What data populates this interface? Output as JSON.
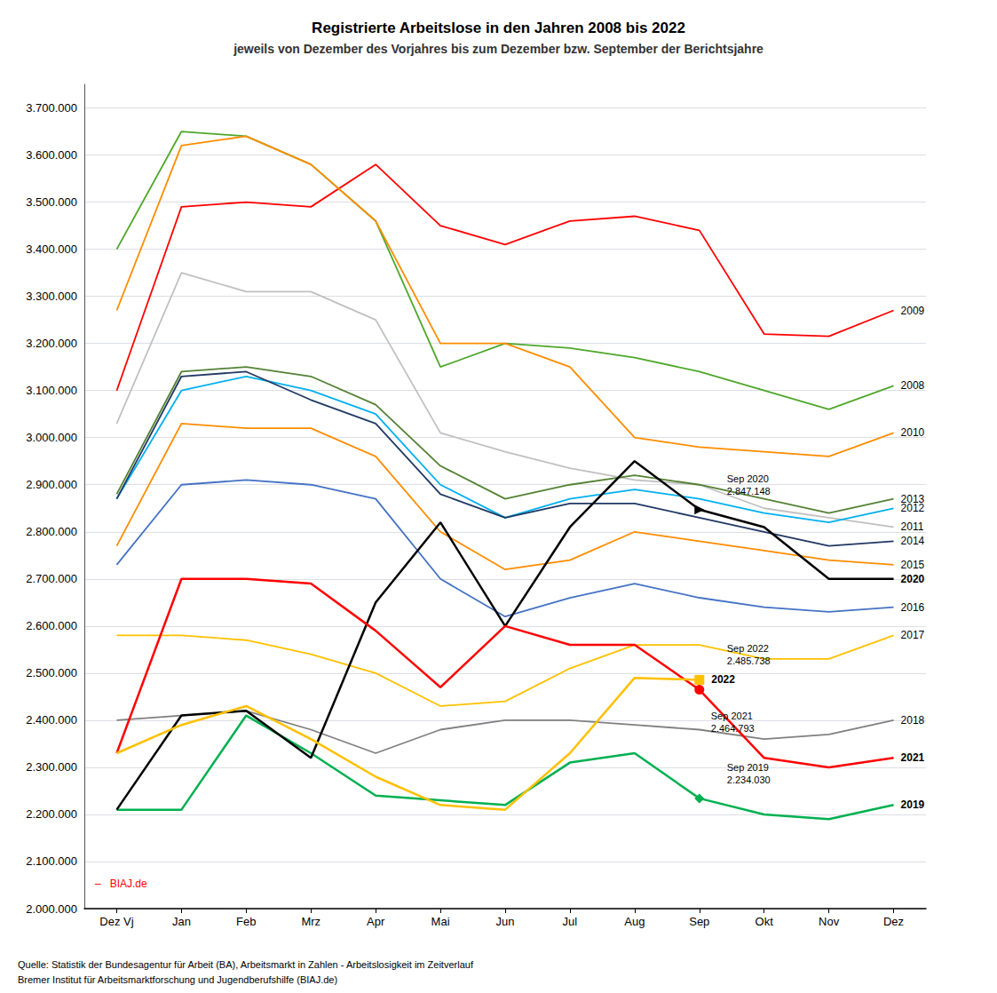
{
  "chart_data": {
    "type": "line",
    "title": "Registrierte Arbeitslose in den Jahren 2008 bis 2022",
    "subtitle": "jeweils von Dezember des Vorjahres bis zum Dezember bzw. September der Berichtsjahre",
    "source": [
      "Quelle: Statistik der Bundesagentur für Arbeit (BA), Arbeitsmarkt in Zahlen - Arbeitslosigkeit im Zeitverlauf",
      "Bremer Institut für Arbeitsmarktforschung und Jugendberufshilfe (BIAJ.de)"
    ],
    "categories": [
      "Dez Vj",
      "Jan",
      "Feb",
      "Mrz",
      "Apr",
      "Mai",
      "Jun",
      "Jul",
      "Aug",
      "Sep",
      "Okt",
      "Nov",
      "Dez"
    ],
    "ylim": [
      2000000,
      3750000
    ],
    "yticks": [
      {
        "value": 2000000,
        "label": "2.000.000"
      },
      {
        "value": 2100000,
        "label": "2.100.000"
      },
      {
        "value": 2200000,
        "label": "2.200.000"
      },
      {
        "value": 2300000,
        "label": "2.300.000"
      },
      {
        "value": 2400000,
        "label": "2.400.000"
      },
      {
        "value": 2500000,
        "label": "2.500.000"
      },
      {
        "value": 2600000,
        "label": "2.600.000"
      },
      {
        "value": 2700000,
        "label": "2.700.000"
      },
      {
        "value": 2800000,
        "label": "2.800.000"
      },
      {
        "value": 2900000,
        "label": "2.900.000"
      },
      {
        "value": 3000000,
        "label": "3.000.000"
      },
      {
        "value": 3100000,
        "label": "3.100.000"
      },
      {
        "value": 3200000,
        "label": "3.200.000"
      },
      {
        "value": 3300000,
        "label": "3.300.000"
      },
      {
        "value": 3400000,
        "label": "3.400.000"
      },
      {
        "value": 3500000,
        "label": "3.500.000"
      },
      {
        "value": 3600000,
        "label": "3.600.000"
      },
      {
        "value": 3700000,
        "label": "3.700.000"
      }
    ],
    "grid": true,
    "series": [
      {
        "name": "2008",
        "color": "#4EA72A",
        "values": [
          3400000,
          3650000,
          3640000,
          3580000,
          3460000,
          3150000,
          3200000,
          3190000,
          3170000,
          3140000,
          3100000,
          3060000,
          3110000
        ]
      },
      {
        "name": "2009",
        "color": "#FF0000",
        "values": [
          3100000,
          3490000,
          3500000,
          3490000,
          3580000,
          3450000,
          3410000,
          3460000,
          3470000,
          3440000,
          3220000,
          3215000,
          3270000
        ]
      },
      {
        "name": "2010",
        "color": "#FF8C00",
        "values": [
          3270000,
          3620000,
          3640000,
          3580000,
          3460000,
          3200000,
          3200000,
          3150000,
          3000000,
          2980000,
          2970000,
          2960000,
          3010000
        ]
      },
      {
        "name": "2011",
        "color": "#C0C0C0",
        "values": [
          3030000,
          3350000,
          3310000,
          3310000,
          3250000,
          3010000,
          2970000,
          2935000,
          2910000,
          2900000,
          2850000,
          2830000,
          2810000
        ]
      },
      {
        "name": "2012",
        "color": "#00B0F0",
        "values": [
          2870000,
          3100000,
          3130000,
          3100000,
          3050000,
          2900000,
          2830000,
          2870000,
          2890000,
          2870000,
          2840000,
          2820000,
          2850000
        ]
      },
      {
        "name": "2013",
        "color": "#548235",
        "values": [
          2880000,
          3140000,
          3150000,
          3130000,
          3070000,
          2940000,
          2870000,
          2900000,
          2920000,
          2900000,
          2870000,
          2840000,
          2870000
        ]
      },
      {
        "name": "2014",
        "color": "#203864",
        "values": [
          2870000,
          3130000,
          3140000,
          3080000,
          3030000,
          2880000,
          2830000,
          2860000,
          2860000,
          2830000,
          2800000,
          2770000,
          2780000
        ]
      },
      {
        "name": "2015",
        "color": "#FF8C00",
        "values": [
          2770000,
          3030000,
          3020000,
          3020000,
          2960000,
          2800000,
          2720000,
          2740000,
          2800000,
          2780000,
          2760000,
          2740000,
          2730000
        ]
      },
      {
        "name": "2016",
        "color": "#4472C4",
        "values": [
          2730000,
          2900000,
          2910000,
          2900000,
          2870000,
          2700000,
          2620000,
          2660000,
          2690000,
          2660000,
          2640000,
          2630000,
          2640000
        ]
      },
      {
        "name": "2017",
        "color": "#FFC000",
        "values": [
          2580000,
          2580000,
          2570000,
          2540000,
          2500000,
          2430000,
          2440000,
          2510000,
          2560000,
          2560000,
          2530000,
          2530000,
          2580000
        ]
      },
      {
        "name": "2018",
        "color": "#808080",
        "values": [
          2400000,
          2410000,
          2420000,
          2380000,
          2330000,
          2380000,
          2400000,
          2400000,
          2390000,
          2380000,
          2360000,
          2370000,
          2400000
        ]
      },
      {
        "name": "2019",
        "color": "#00B050",
        "marker": "diamond",
        "values": [
          2210000,
          2210000,
          2410000,
          2330000,
          2240000,
          2230000,
          2220000,
          2310000,
          2330000,
          2234030,
          2200000,
          2190000,
          2220000
        ]
      },
      {
        "name": "2020",
        "color": "#000000",
        "marker": "triangle",
        "values": [
          2210000,
          2410000,
          2420000,
          2320000,
          2650000,
          2820000,
          2600000,
          2810000,
          2950000,
          2847148,
          2810000,
          2700000,
          2700000
        ]
      },
      {
        "name": "2021",
        "color": "#FF0000",
        "marker": "circle",
        "values": [
          2330000,
          2700000,
          2700000,
          2690000,
          2590000,
          2470000,
          2600000,
          2560000,
          2560000,
          2464793,
          2320000,
          2300000,
          2320000
        ]
      },
      {
        "name": "2022",
        "color": "#FFC000",
        "marker": "square",
        "values": [
          2330000,
          2390000,
          2430000,
          2360000,
          2280000,
          2220000,
          2210000,
          2330000,
          2490000,
          2485738,
          null,
          null,
          null
        ]
      }
    ],
    "annotations": [
      {
        "text": "Sep 2020\n2.847.148",
        "x": "Sep",
        "y": 2847148
      },
      {
        "text": "Sep 2022\n2.485.738",
        "x": "Sep",
        "y": 2485738
      },
      {
        "text": "Sep 2021\n2.464.793",
        "x": "Sep",
        "y": 2464793
      },
      {
        "text": "Sep 2019\n2.234.030",
        "x": "Sep",
        "y": 2234030
      },
      {
        "text": "–   BIAJ.de",
        "color": "red"
      }
    ]
  }
}
